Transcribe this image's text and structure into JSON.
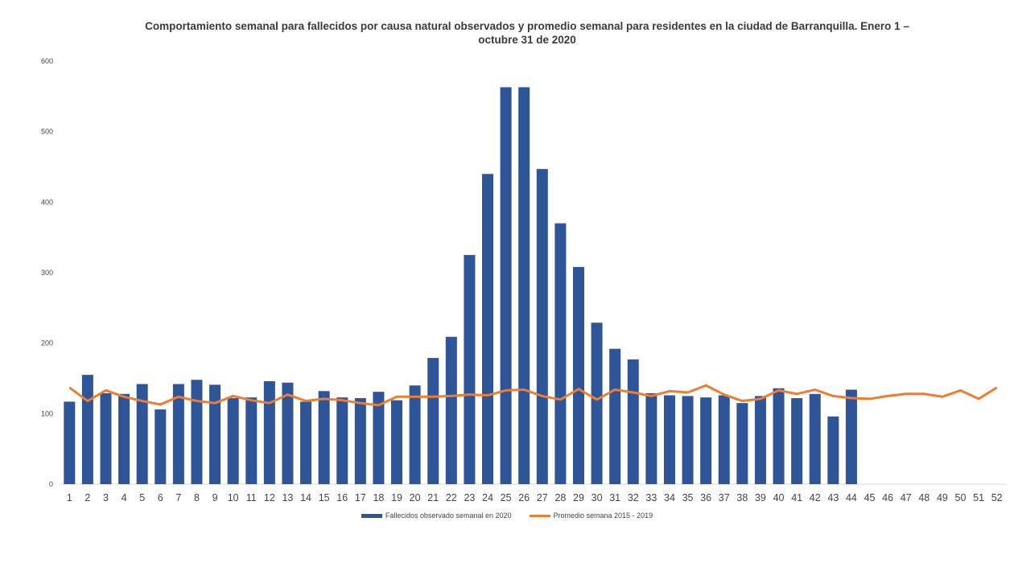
{
  "chart_data": {
    "type": "bar",
    "title": "Comportamiento semanal para fallecidos por causa natural observados y promedio semanal para residentes en la ciudad de Barranquilla. Enero 1 – octubre 31 de 2020",
    "title_line1": "Comportamiento semanal para fallecidos por causa natural observados y promedio semanal para residentes en la ciudad de Barranquilla. Enero 1 –",
    "title_line2": "octubre 31 de 2020",
    "xlabel": "",
    "ylabel": "",
    "ylim": [
      0,
      600
    ],
    "yticks": [
      0,
      100,
      200,
      300,
      400,
      500,
      600
    ],
    "categories": [
      "1",
      "2",
      "3",
      "4",
      "5",
      "6",
      "7",
      "8",
      "9",
      "10",
      "11",
      "12",
      "13",
      "14",
      "15",
      "16",
      "17",
      "18",
      "19",
      "20",
      "21",
      "22",
      "23",
      "24",
      "25",
      "26",
      "27",
      "28",
      "29",
      "30",
      "31",
      "32",
      "33",
      "34",
      "35",
      "36",
      "37",
      "38",
      "39",
      "40",
      "41",
      "42",
      "43",
      "44",
      "45",
      "46",
      "47",
      "48",
      "49",
      "50",
      "51",
      "52"
    ],
    "series": [
      {
        "name": "Fallecidos observado semanal en 2020",
        "kind": "bar",
        "color": "#2e5597",
        "values": [
          117,
          155,
          129,
          128,
          142,
          106,
          142,
          148,
          141,
          122,
          123,
          146,
          144,
          117,
          132,
          123,
          122,
          131,
          119,
          140,
          179,
          209,
          325,
          440,
          563,
          563,
          447,
          370,
          308,
          229,
          192,
          177,
          129,
          126,
          125,
          123,
          126,
          115,
          125,
          136,
          122,
          128,
          96,
          134,
          null,
          null,
          null,
          null,
          null,
          null,
          null,
          null
        ]
      },
      {
        "name": "Promedio semana 2015 - 2019",
        "kind": "line",
        "color": "#ed7d31",
        "values": [
          137,
          118,
          133,
          124,
          118,
          113,
          124,
          118,
          115,
          125,
          119,
          115,
          127,
          118,
          121,
          119,
          115,
          112,
          124,
          124,
          124,
          125,
          127,
          126,
          133,
          134,
          125,
          120,
          135,
          120,
          134,
          130,
          125,
          132,
          130,
          140,
          127,
          118,
          121,
          133,
          128,
          134,
          125,
          122,
          121,
          125,
          128,
          128,
          124,
          133,
          121,
          137
        ]
      }
    ]
  },
  "legend": {
    "bar_label": "Fallecidos observado semanal en 2020",
    "line_label": "Promedio semana 2015 - 2019"
  }
}
